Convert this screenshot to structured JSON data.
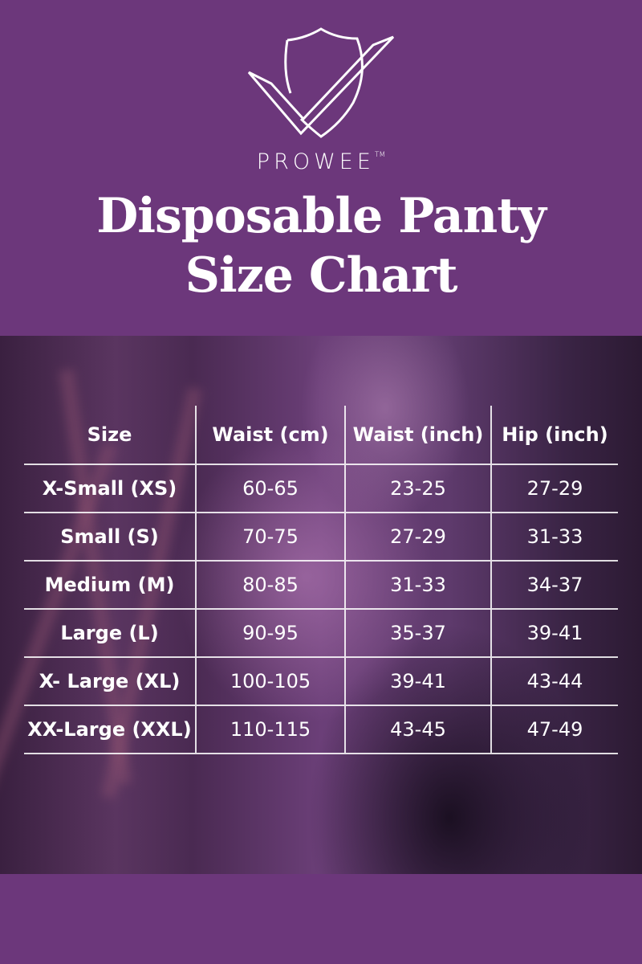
{
  "brand": {
    "name": "PROWEE",
    "trademark": "TM",
    "logo_icon": "shield-check-icon"
  },
  "title": {
    "line1": "Disposable Panty",
    "line2": "Size Chart"
  },
  "colors": {
    "background": "#6c377b",
    "text": "#ffffff"
  },
  "table": {
    "headers": [
      "Size",
      "Waist (cm)",
      "Waist (inch)",
      "Hip (inch)"
    ],
    "rows": [
      [
        "X-Small (XS)",
        "60-65",
        "23-25",
        "27-29"
      ],
      [
        "Small (S)",
        "70-75",
        "27-29",
        "31-33"
      ],
      [
        "Medium (M)",
        "80-85",
        "31-33",
        "34-37"
      ],
      [
        "Large (L)",
        "90-95",
        "35-37",
        "39-41"
      ],
      [
        "X- Large (XL)",
        "100-105",
        "39-41",
        "43-44"
      ],
      [
        "XX-Large (XXL)",
        "110-115",
        "43-45",
        "47-49"
      ]
    ]
  }
}
